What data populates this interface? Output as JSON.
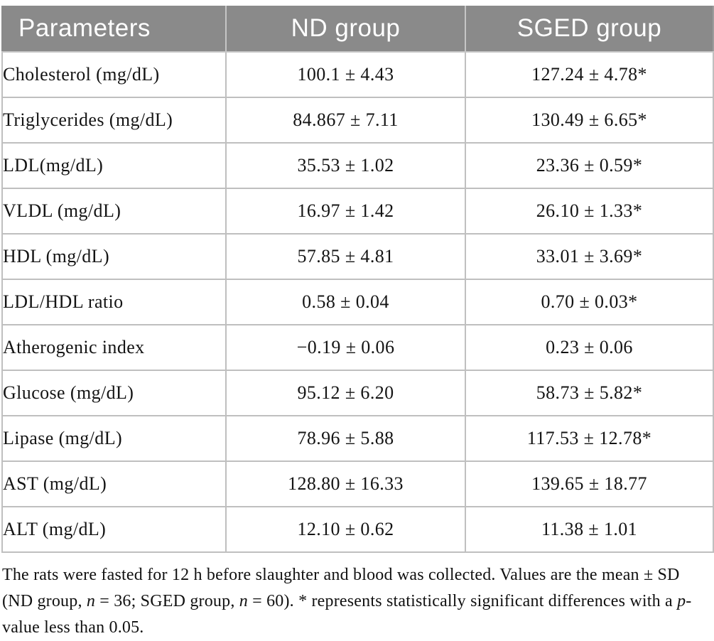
{
  "table": {
    "header": {
      "parameter": "Parameters",
      "nd": "ND group",
      "sged": "SGED group"
    },
    "rows": [
      [
        "Cholesterol (mg/dL)",
        "100.1 ± 4.43",
        "127.24 ± 4.78*"
      ],
      [
        "Triglycerides (mg/dL)",
        "84.867 ± 7.11",
        "130.49 ± 6.65*"
      ],
      [
        "LDL(mg/dL)",
        "35.53 ± 1.02",
        "23.36 ± 0.59*"
      ],
      [
        "VLDL (mg/dL)",
        "16.97 ± 1.42",
        "26.10 ± 1.33*"
      ],
      [
        "HDL (mg/dL)",
        "57.85 ± 4.81",
        "33.01 ± 3.69*"
      ],
      [
        "LDL/HDL ratio",
        "0.58 ± 0.04",
        "0.70 ± 0.03*"
      ],
      [
        "Atherogenic index",
        "−0.19 ± 0.06",
        "0.23 ± 0.06"
      ],
      [
        "Glucose (mg/dL)",
        "95.12 ± 6.20",
        "58.73 ± 5.82*"
      ],
      [
        "Lipase (mg/dL)",
        "78.96 ± 5.88",
        "117.53 ± 12.78*"
      ],
      [
        "AST (mg/dL)",
        "128.80 ± 16.33",
        "139.65 ± 18.77"
      ],
      [
        "ALT (mg/dL)",
        "12.10 ± 0.62",
        "11.38 ± 1.01"
      ]
    ]
  },
  "footnote": {
    "segments": [
      {
        "text": "The rats were fasted for 12 h before slaughter and blood was collected. Values are the mean ± SD (ND group, ",
        "italic": false
      },
      {
        "text": "n",
        "italic": true
      },
      {
        "text": " = 36; SGED group, ",
        "italic": false
      },
      {
        "text": "n",
        "italic": true
      },
      {
        "text": " = 60). * represents statistically significant differences with a ",
        "italic": false
      },
      {
        "text": "p",
        "italic": true
      },
      {
        "text": "-value less than 0.05.",
        "italic": false
      }
    ]
  },
  "colors": {
    "header_bg": "#8a8a8a",
    "header_text": "#ffffff",
    "cell_border": "#bfbfbf",
    "body_text": "#141414"
  }
}
